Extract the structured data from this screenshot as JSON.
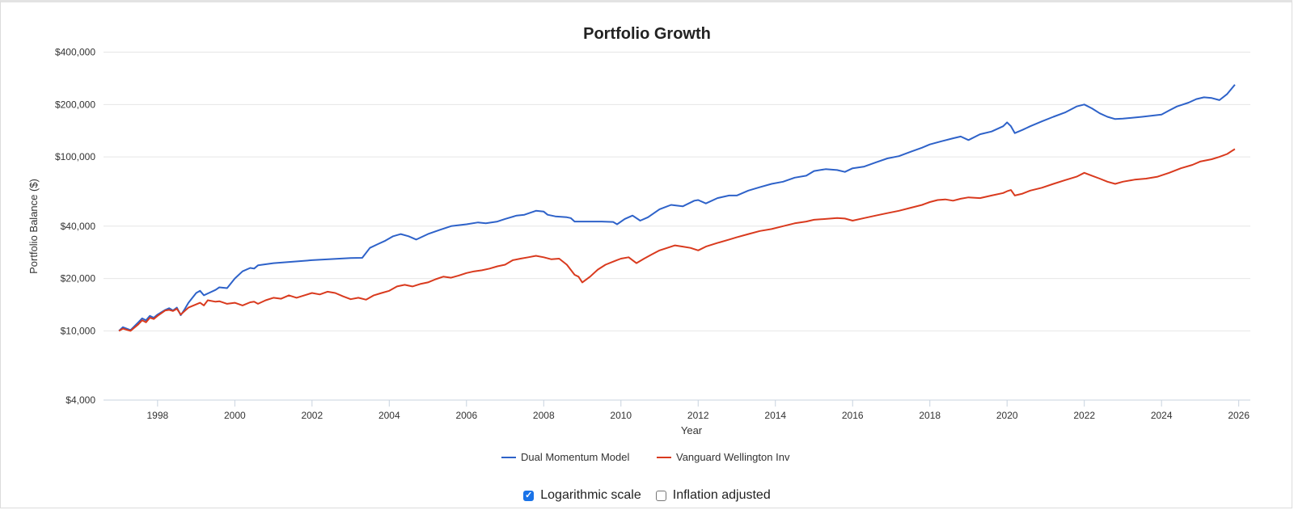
{
  "chart_data": {
    "type": "line",
    "title": "Portfolio Growth",
    "xlabel": "Year",
    "ylabel": "Portfolio Balance ($)",
    "xlim": [
      1996.6,
      2026.3
    ],
    "ylim": [
      4000,
      420000
    ],
    "yscale": "log",
    "grid": true,
    "legend_position": "bottom",
    "x_ticks": [
      1998,
      2000,
      2002,
      2004,
      2006,
      2008,
      2010,
      2012,
      2014,
      2016,
      2018,
      2020,
      2022,
      2024,
      2026
    ],
    "x_tick_labels": [
      "1998",
      "2000",
      "2002",
      "2004",
      "2006",
      "2008",
      "2010",
      "2012",
      "2014",
      "2016",
      "2018",
      "2020",
      "2022",
      "2024",
      "2026"
    ],
    "y_ticks": [
      4000,
      10000,
      20000,
      40000,
      100000,
      200000,
      400000
    ],
    "y_tick_labels": [
      "$4,000",
      "$10,000",
      "$20,000",
      "$40,000",
      "$100,000",
      "$200,000",
      "$400,000"
    ],
    "series": [
      {
        "name": "Dual Momentum Model",
        "color": "#2e62c9",
        "x": [
          1997.0,
          1997.1,
          1997.3,
          1997.5,
          1997.6,
          1997.7,
          1997.8,
          1997.9,
          1998.0,
          1998.2,
          1998.3,
          1998.4,
          1998.5,
          1998.6,
          1998.7,
          1998.8,
          1999.0,
          1999.1,
          1999.2,
          1999.3,
          1999.5,
          1999.6,
          1999.8,
          2000.0,
          2000.2,
          2000.4,
          2000.5,
          2000.6,
          2001.0,
          2002.0,
          2003.0,
          2003.3,
          2003.5,
          2003.7,
          2003.9,
          2004.1,
          2004.3,
          2004.5,
          2004.7,
          2005.0,
          2005.3,
          2005.6,
          2005.8,
          2006.0,
          2006.3,
          2006.5,
          2006.8,
          2007.0,
          2007.3,
          2007.5,
          2007.8,
          2008.0,
          2008.1,
          2008.3,
          2008.6,
          2008.7,
          2008.8,
          2009.0,
          2009.5,
          2009.8,
          2009.9,
          2010.1,
          2010.3,
          2010.5,
          2010.7,
          2011.0,
          2011.3,
          2011.6,
          2011.9,
          2012.0,
          2012.2,
          2012.5,
          2012.8,
          2013.0,
          2013.3,
          2013.6,
          2013.9,
          2014.2,
          2014.5,
          2014.8,
          2015.0,
          2015.3,
          2015.6,
          2015.8,
          2016.0,
          2016.3,
          2016.6,
          2016.9,
          2017.2,
          2017.5,
          2017.8,
          2018.0,
          2018.3,
          2018.6,
          2018.8,
          2019.0,
          2019.3,
          2019.6,
          2019.9,
          2020.0,
          2020.1,
          2020.2,
          2020.4,
          2020.6,
          2020.9,
          2021.2,
          2021.5,
          2021.8,
          2022.0,
          2022.2,
          2022.4,
          2022.6,
          2022.8,
          2023.0,
          2023.5,
          2024.0,
          2024.2,
          2024.4,
          2024.7,
          2024.9,
          2025.1,
          2025.3,
          2025.5,
          2025.7,
          2025.9
        ],
        "values": [
          10000,
          10500,
          10100,
          11200,
          11800,
          11500,
          12200,
          11900,
          12400,
          13200,
          13500,
          13100,
          13600,
          12300,
          13300,
          14500,
          16500,
          17000,
          16000,
          16400,
          17200,
          17800,
          17600,
          20000,
          22000,
          23000,
          22800,
          23800,
          24500,
          25500,
          26200,
          26300,
          30000,
          31500,
          33000,
          35000,
          36000,
          35000,
          33500,
          36000,
          38000,
          40000,
          40500,
          41000,
          42000,
          41500,
          42500,
          44000,
          46000,
          46500,
          49000,
          48500,
          46500,
          45500,
          45000,
          44500,
          42500,
          42500,
          42500,
          42300,
          41000,
          44000,
          46000,
          43000,
          45000,
          50000,
          53000,
          52000,
          56000,
          56500,
          54000,
          58000,
          60000,
          60000,
          64000,
          67000,
          70000,
          72000,
          76000,
          78000,
          83000,
          85000,
          84000,
          82000,
          86000,
          88000,
          93000,
          98000,
          101000,
          107000,
          113000,
          118000,
          123000,
          128000,
          131000,
          125000,
          135000,
          140000,
          150000,
          158000,
          150000,
          137000,
          143000,
          150000,
          160000,
          170000,
          180000,
          195000,
          200000,
          190000,
          178000,
          170000,
          165000,
          166000,
          170000,
          175000,
          185000,
          195000,
          205000,
          215000,
          220000,
          218000,
          212000,
          230000,
          260000
        ]
      },
      {
        "name": "Vanguard Wellington Inv",
        "color": "#d93a1e",
        "x": [
          1997.0,
          1997.1,
          1997.3,
          1997.5,
          1997.6,
          1997.7,
          1997.8,
          1997.9,
          1998.0,
          1998.2,
          1998.3,
          1998.4,
          1998.5,
          1998.6,
          1998.7,
          1998.8,
          1999.0,
          1999.1,
          1999.2,
          1999.3,
          1999.5,
          1999.6,
          1999.8,
          2000.0,
          2000.2,
          2000.4,
          2000.5,
          2000.6,
          2000.8,
          2001.0,
          2001.2,
          2001.4,
          2001.6,
          2001.8,
          2002.0,
          2002.2,
          2002.4,
          2002.6,
          2002.8,
          2003.0,
          2003.2,
          2003.4,
          2003.6,
          2003.8,
          2004.0,
          2004.2,
          2004.4,
          2004.6,
          2004.8,
          2005.0,
          2005.2,
          2005.4,
          2005.6,
          2005.8,
          2006.0,
          2006.2,
          2006.4,
          2006.6,
          2006.8,
          2007.0,
          2007.2,
          2007.4,
          2007.6,
          2007.8,
          2008.0,
          2008.2,
          2008.4,
          2008.6,
          2008.8,
          2008.9,
          2009.0,
          2009.2,
          2009.4,
          2009.6,
          2009.8,
          2010.0,
          2010.2,
          2010.4,
          2010.6,
          2010.8,
          2011.0,
          2011.2,
          2011.4,
          2011.6,
          2011.8,
          2012.0,
          2012.2,
          2012.5,
          2012.8,
          2013.0,
          2013.3,
          2013.6,
          2013.9,
          2014.2,
          2014.5,
          2014.8,
          2015.0,
          2015.3,
          2015.6,
          2015.8,
          2016.0,
          2016.3,
          2016.6,
          2016.9,
          2017.2,
          2017.5,
          2017.8,
          2018.0,
          2018.2,
          2018.4,
          2018.6,
          2018.8,
          2019.0,
          2019.3,
          2019.6,
          2019.9,
          2020.0,
          2020.1,
          2020.2,
          2020.4,
          2020.6,
          2020.9,
          2021.2,
          2021.5,
          2021.8,
          2022.0,
          2022.2,
          2022.4,
          2022.6,
          2022.8,
          2023.0,
          2023.3,
          2023.6,
          2023.9,
          2024.2,
          2024.5,
          2024.8,
          2025.0,
          2025.3,
          2025.5,
          2025.7,
          2025.9
        ],
        "values": [
          10000,
          10300,
          10000,
          10900,
          11500,
          11200,
          11900,
          11700,
          12200,
          13100,
          13200,
          13000,
          13400,
          12400,
          13000,
          13600,
          14200,
          14500,
          14000,
          15000,
          14700,
          14800,
          14300,
          14500,
          14000,
          14600,
          14700,
          14300,
          15000,
          15500,
          15300,
          16000,
          15500,
          16000,
          16500,
          16200,
          16800,
          16500,
          15800,
          15200,
          15500,
          15100,
          16000,
          16500,
          17000,
          18000,
          18400,
          18000,
          18600,
          19000,
          19800,
          20500,
          20200,
          20800,
          21500,
          22000,
          22300,
          22800,
          23500,
          24000,
          25500,
          26000,
          26500,
          27000,
          26500,
          25800,
          26000,
          24000,
          21000,
          20500,
          19000,
          20500,
          22500,
          24000,
          25000,
          26000,
          26500,
          24500,
          26000,
          27500,
          29000,
          30000,
          31000,
          30500,
          30000,
          29000,
          30500,
          32000,
          33500,
          34500,
          36000,
          37500,
          38500,
          40000,
          41500,
          42500,
          43500,
          44000,
          44500,
          44200,
          43000,
          44500,
          46000,
          47500,
          49000,
          51000,
          53000,
          55000,
          56500,
          57000,
          56000,
          57500,
          58500,
          58000,
          60000,
          62000,
          63500,
          64500,
          60000,
          61500,
          64000,
          66500,
          70000,
          73500,
          77000,
          81000,
          78000,
          75000,
          72000,
          70000,
          72000,
          74000,
          75000,
          77000,
          81000,
          86000,
          90000,
          94000,
          97000,
          100000,
          104000,
          111000
        ]
      }
    ]
  },
  "controls": {
    "log_scale": {
      "label": "Logarithmic scale",
      "checked": true,
      "check_glyph": "✓"
    },
    "inflation": {
      "label": "Inflation adjusted",
      "checked": false
    }
  }
}
